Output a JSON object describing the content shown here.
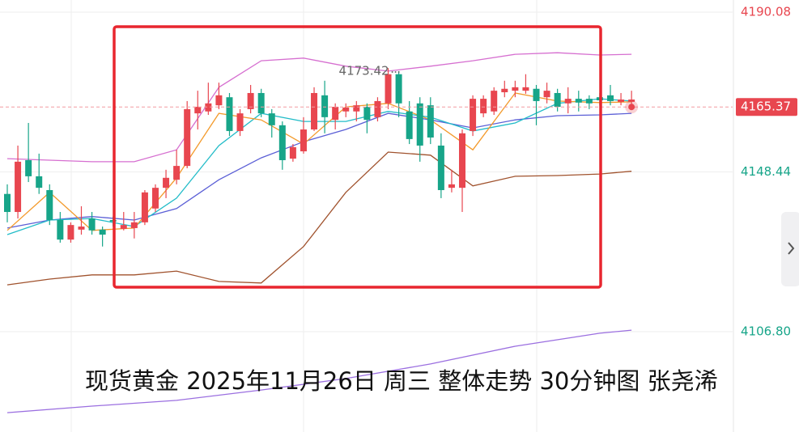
{
  "chart_data": {
    "type": "candlestick",
    "title": "现货黄金 2025年11月26日 周三 整体走势 30分钟图 张尧浠",
    "ylim": [
      4080.66,
      4193.24
    ],
    "yticks": [
      4190.08,
      4148.44,
      {
        "value": 4106.8,
        "label": "4106.80"
      }
    ],
    "grid": true,
    "up_color": "#e8464f",
    "down_color": "#17a589",
    "last_price": 4165.37,
    "high_annotation": 4173.42,
    "candles": {
      "open": [
        4142.7,
        4138.0,
        4151.5,
        4147.3,
        4143.7,
        4135.9,
        4130.8,
        4133.4,
        4136.3,
        4133.4,
        4135.9,
        4133.6,
        4133.8,
        4135.3,
        4138.9,
        4144.3,
        4146.4,
        4150.0,
        4163.7,
        4164.2,
        4165.8,
        4167.9,
        4159.1,
        4164.8,
        4169.0,
        4163.7,
        4160.6,
        4151.9,
        4153.8,
        4159.5,
        4168.4,
        4162.0,
        4164.2,
        4164.2,
        4165.4,
        4162.7,
        4166.3,
        4173.9,
        4164.2,
        4166.3,
        4165.8,
        4155.3,
        4144.3,
        4144.3,
        4159.1,
        4163.7,
        4164.2,
        4169.2,
        4169.6,
        4169.6,
        4170.1,
        4167.9,
        4169.0,
        4166.3,
        4167.5,
        4167.5,
        4167.9,
        4168.4,
        4166.7,
        4166.7
      ],
      "high": [
        4145.2,
        4155.3,
        4161.2,
        4153.2,
        4145.2,
        4138.0,
        4135.3,
        4139.5,
        4138.0,
        4134.2,
        4136.8,
        4138.0,
        4138.0,
        4143.7,
        4145.2,
        4149.0,
        4154.2,
        4166.9,
        4169.6,
        4171.7,
        4171.7,
        4169.0,
        4164.8,
        4171.1,
        4170.1,
        4164.8,
        4161.6,
        4155.7,
        4162.7,
        4170.5,
        4172.2,
        4166.3,
        4166.3,
        4166.9,
        4166.3,
        4167.9,
        4175.5,
        4174.7,
        4166.9,
        4167.9,
        4167.9,
        4158.5,
        4149.0,
        4159.5,
        4168.4,
        4168.4,
        4170.5,
        4172.2,
        4172.2,
        4173.9,
        4171.1,
        4171.7,
        4170.1,
        4170.5,
        4169.6,
        4168.4,
        4169.0,
        4171.1,
        4169.0,
        4169.6
      ],
      "low": [
        4135.3,
        4136.3,
        4145.8,
        4142.7,
        4134.6,
        4130.0,
        4130.0,
        4132.1,
        4132.1,
        4129.0,
        4134.2,
        4133.2,
        4131.1,
        4134.6,
        4138.0,
        4141.6,
        4145.2,
        4149.4,
        4159.5,
        4163.3,
        4164.8,
        4157.8,
        4157.8,
        4163.7,
        4162.7,
        4157.4,
        4149.0,
        4151.1,
        4153.2,
        4159.1,
        4158.5,
        4159.5,
        4162.7,
        4161.6,
        4158.5,
        4161.6,
        4164.8,
        4162.7,
        4155.7,
        4151.1,
        4155.7,
        4141.6,
        4143.1,
        4138.0,
        4157.8,
        4162.7,
        4163.3,
        4167.9,
        4167.9,
        4168.8,
        4160.6,
        4166.3,
        4164.2,
        4163.7,
        4164.2,
        4164.8,
        4165.8,
        4165.8,
        4165.8,
        4164.8
      ],
      "close": [
        4138.0,
        4151.1,
        4147.3,
        4144.3,
        4135.9,
        4130.8,
        4134.6,
        4134.2,
        4133.2,
        4132.1,
        4135.5,
        4134.6,
        4135.3,
        4143.1,
        4144.3,
        4146.9,
        4150.0,
        4164.8,
        4165.4,
        4166.3,
        4168.4,
        4159.1,
        4163.7,
        4169.0,
        4163.7,
        4160.6,
        4151.5,
        4154.9,
        4159.5,
        4169.0,
        4162.7,
        4165.4,
        4165.2,
        4165.8,
        4162.0,
        4166.9,
        4173.9,
        4166.3,
        4157.0,
        4155.3,
        4157.4,
        4143.7,
        4145.2,
        4158.5,
        4167.5,
        4167.5,
        4169.6,
        4170.1,
        4170.5,
        4170.5,
        4166.9,
        4169.6,
        4165.4,
        4167.5,
        4166.5,
        4166.3,
        4167.1,
        4166.9,
        4167.3,
        4167.3
      ]
    },
    "lines": [
      {
        "color": "#d66fd0",
        "x": [
          0,
          4,
          8,
          12,
          16,
          20,
          24,
          28,
          32,
          36,
          40,
          44,
          48,
          52,
          56,
          59
        ],
        "values": [
          4151.9,
          4151.5,
          4151.1,
          4151.1,
          4154.2,
          4170.5,
          4177.4,
          4178.1,
          4176.0,
          4174.7,
          4176.0,
          4177.4,
          4179.1,
          4179.5,
          4178.9,
          4179.1
        ]
      },
      {
        "color": "#a0522d",
        "x": [
          0,
          4,
          8,
          12,
          16,
          20,
          24,
          28,
          32,
          36,
          40,
          44,
          48,
          52,
          56,
          59
        ],
        "values": [
          4119.0,
          4120.5,
          4121.6,
          4121.6,
          4122.6,
          4119.9,
          4119.5,
          4129.0,
          4143.1,
          4153.6,
          4152.8,
          4144.8,
          4147.3,
          4147.5,
          4147.9,
          4148.6
        ]
      },
      {
        "color": "#5b5fd6",
        "x": [
          0,
          4,
          8,
          12,
          16,
          20,
          24,
          28,
          32,
          36,
          40,
          44,
          48,
          52,
          56,
          59
        ],
        "values": [
          4133.8,
          4135.9,
          4136.8,
          4135.9,
          4138.9,
          4146.4,
          4152.1,
          4156.3,
          4159.5,
          4163.7,
          4162.0,
          4159.9,
          4162.0,
          4163.1,
          4163.3,
          4163.7
        ]
      },
      {
        "color": "#22bcc8",
        "x": [
          0,
          4,
          8,
          12,
          16,
          20,
          24,
          28,
          32,
          36,
          40,
          44,
          48,
          52,
          56,
          59
        ],
        "values": [
          4132.1,
          4135.9,
          4136.3,
          4134.2,
          4141.6,
          4155.3,
          4163.7,
          4161.6,
          4161.6,
          4164.2,
          4162.7,
          4159.1,
          4161.2,
          4166.3,
          4167.5,
          4166.9
        ]
      },
      {
        "color": "#f39a2b",
        "x": [
          0,
          4,
          8,
          12,
          16,
          20,
          24,
          28,
          32,
          36,
          40,
          44,
          48,
          52,
          56,
          59
        ],
        "values": [
          4133.2,
          4143.1,
          4133.2,
          4133.8,
          4146.9,
          4163.7,
          4162.0,
          4155.7,
          4165.4,
          4166.3,
          4162.0,
          4154.2,
          4169.0,
          4166.9,
          4166.5,
          4166.7
        ]
      },
      {
        "color": "#9b6fe0",
        "x": [
          0,
          8,
          16,
          24,
          32,
          40,
          48,
          56,
          59
        ],
        "values": [
          4085.7,
          4087.4,
          4088.9,
          4091.6,
          4094.6,
          4098.4,
          4103.0,
          4106.4,
          4107.2
        ]
      }
    ]
  }
}
